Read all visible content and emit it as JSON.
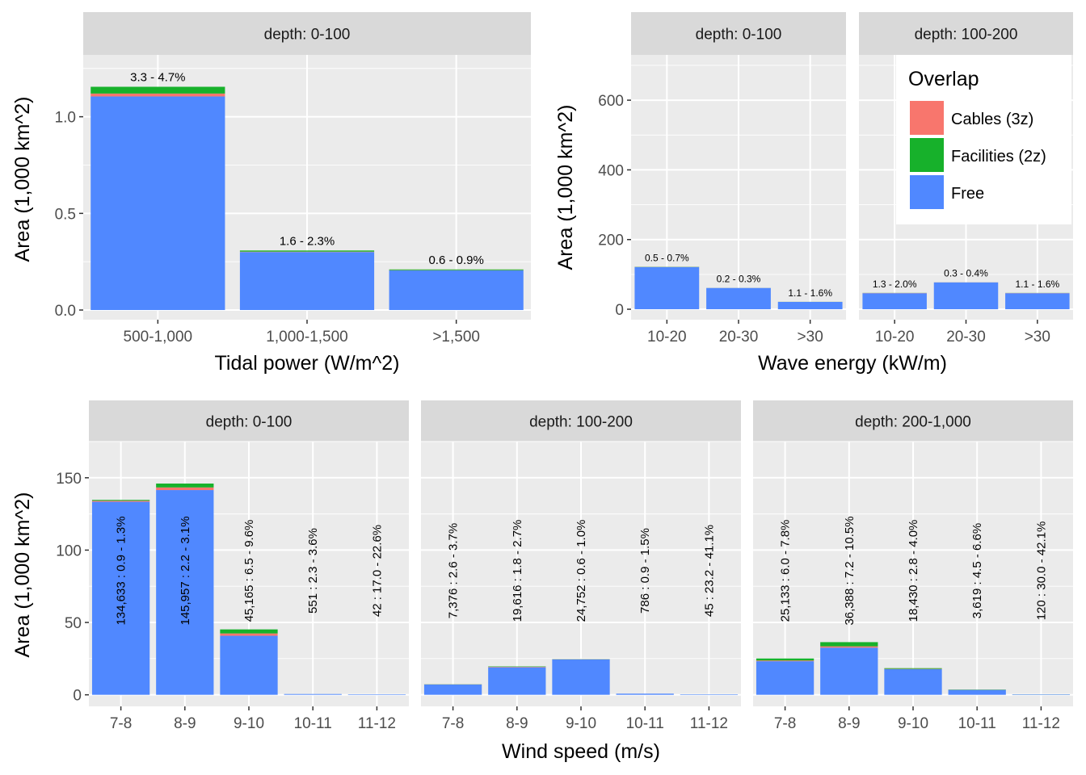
{
  "colors": {
    "cables": "#F8766D",
    "facilities": "#17B12B",
    "free": "#5088FF",
    "panel_bg": "#EBEBEB",
    "strip_bg": "#D9D9D9",
    "grid": "#FFFFFF"
  },
  "legend": {
    "title": "Overlap",
    "items": [
      {
        "label": "Cables (3z)",
        "color": "#F8766D"
      },
      {
        "label": "Facilities (2z)",
        "color": "#17B12B"
      },
      {
        "label": "Free",
        "color": "#5088FF"
      }
    ]
  },
  "chart_data": [
    {
      "type": "bar",
      "stacked": true,
      "xlabel": "Tidal power (W/m^2)",
      "ylabel": "Area (1,000 km^2)",
      "ylim": [
        -0.05,
        1.32
      ],
      "yticks": [
        0.0,
        0.5,
        1.0
      ],
      "ytick_labels": [
        "0.0",
        "0.5",
        "1.0"
      ],
      "categories": [
        "500-1,000",
        "1,000-1,500",
        ">1,500"
      ],
      "panels": [
        {
          "strip": "depth: 0-100",
          "free": [
            1.105,
            0.3,
            0.205
          ],
          "cables": [
            0.015,
            0.002,
            0.001
          ],
          "facilities": [
            0.035,
            0.006,
            0.004
          ],
          "labels": [
            "3.3 - 4.7%",
            "1.6 - 2.3%",
            "0.6 - 0.9%"
          ]
        }
      ]
    },
    {
      "type": "bar",
      "stacked": true,
      "xlabel": "Wave energy (kW/m)",
      "ylabel": "Area (1,000 km^2)",
      "ylim": [
        -30,
        730
      ],
      "yticks": [
        0,
        200,
        400,
        600
      ],
      "ytick_labels": [
        "0",
        "200",
        "400",
        "600"
      ],
      "categories": [
        "10-20",
        "20-30",
        ">30"
      ],
      "panels": [
        {
          "strip": "depth: 0-100",
          "free": [
            121,
            61,
            21
          ],
          "cables": [
            0.4,
            0.1,
            0.1
          ],
          "facilities": [
            0.5,
            0.1,
            0.2
          ],
          "labels": [
            "0.5 - 0.7%",
            "0.2 - 0.3%",
            "1.1 - 1.6%"
          ]
        },
        {
          "strip": "depth: 100-200",
          "free": [
            46,
            77,
            46
          ],
          "cables": [
            0.6,
            0.2,
            0.5
          ],
          "facilities": [
            0.3,
            0.1,
            0.3
          ],
          "labels": [
            "1.3 - 2.0%",
            "0.3 - 0.4%",
            "1.1 - 1.6%"
          ]
        }
      ]
    },
    {
      "type": "bar",
      "stacked": true,
      "xlabel": "Wind speed (m/s)",
      "ylabel": "Area (1,000 km^2)",
      "ylim": [
        -8,
        175
      ],
      "yticks": [
        0,
        50,
        100,
        150
      ],
      "ytick_labels": [
        "0",
        "50",
        "100",
        "150"
      ],
      "categories": [
        "7-8",
        "8-9",
        "9-10",
        "10-11",
        "11-12"
      ],
      "panels": [
        {
          "strip": "depth: 0-100",
          "free": [
            133.4,
            141.5,
            40.8,
            0.53,
            0.03
          ],
          "cables": [
            0.7,
            1.8,
            1.6,
            0.01,
            0.003
          ],
          "facilities": [
            0.6,
            2.7,
            2.8,
            0.01,
            0.007
          ],
          "labels": [
            "134,633 : 0.9 - 1.3%",
            "145,957 : 2.2 - 3.1%",
            "45,165 : 6.5 - 9.6%",
            "551 : 2.3 - 3.6%",
            "42 : 17.0 - 22.6%"
          ]
        },
        {
          "strip": "depth: 100-200",
          "free": [
            7.1,
            19.0,
            24.5,
            0.78,
            0.03
          ],
          "cables": [
            0.1,
            0.3,
            0.1,
            0.003,
            0.005
          ],
          "facilities": [
            0.1,
            0.3,
            0.1,
            0.004,
            0.01
          ],
          "labels": [
            "7,376 : 2.6 - 3.7%",
            "19,616 : 1.8 - 2.7%",
            "24,752 : 0.6 - 1.0%",
            "786 : 0.9 - 1.5%",
            "45 : 23.2 - 41.1%"
          ]
        },
        {
          "strip": "depth: 200-1,000",
          "free": [
            23.2,
            32.6,
            17.7,
            3.38,
            0.07
          ],
          "cables": [
            0.5,
            0.9,
            0.2,
            0.05,
            0.01
          ],
          "facilities": [
            1.4,
            2.9,
            0.5,
            0.19,
            0.04
          ],
          "labels": [
            "25,133 : 6.0 - 7.8%",
            "36,388 : 7.2 - 10.5%",
            "18,430 : 2.8 - 4.0%",
            "3,619 : 4.5 - 6.6%",
            "120 : 30.0 - 42.1%"
          ]
        }
      ]
    }
  ]
}
